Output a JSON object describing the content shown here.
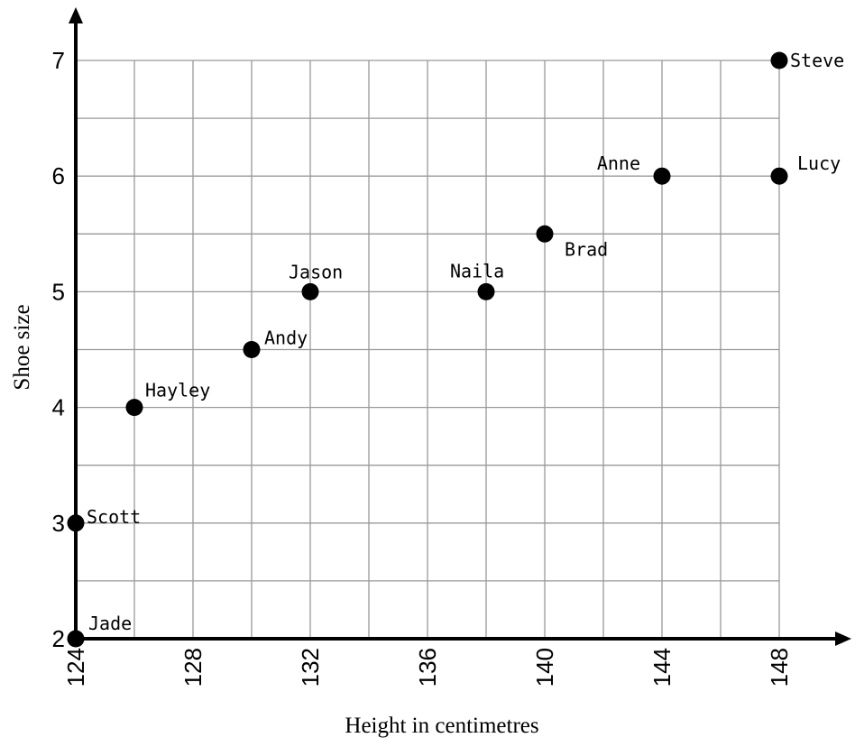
{
  "chart_data": {
    "type": "scatter",
    "xlabel": "Height in centimetres",
    "ylabel": "Shoe size",
    "xlim": [
      124,
      148
    ],
    "ylim": [
      2,
      7
    ],
    "x_ticks": [
      124,
      128,
      132,
      136,
      140,
      144,
      148
    ],
    "y_ticks": [
      2,
      3,
      4,
      5,
      6,
      7
    ],
    "x_minor_step": 2,
    "y_minor_step": 0.5,
    "grid": true,
    "points": [
      {
        "name": "Jade",
        "x": 124,
        "y": 2
      },
      {
        "name": "Scott",
        "x": 124,
        "y": 3
      },
      {
        "name": "Hayley",
        "x": 126,
        "y": 4
      },
      {
        "name": "Andy",
        "x": 130,
        "y": 4.5
      },
      {
        "name": "Jason",
        "x": 132,
        "y": 5
      },
      {
        "name": "Naila",
        "x": 138,
        "y": 5
      },
      {
        "name": "Brad",
        "x": 140,
        "y": 5.5
      },
      {
        "name": "Anne",
        "x": 144,
        "y": 6
      },
      {
        "name": "Lucy",
        "x": 148,
        "y": 6
      },
      {
        "name": "Steve",
        "x": 148,
        "y": 7
      }
    ]
  }
}
